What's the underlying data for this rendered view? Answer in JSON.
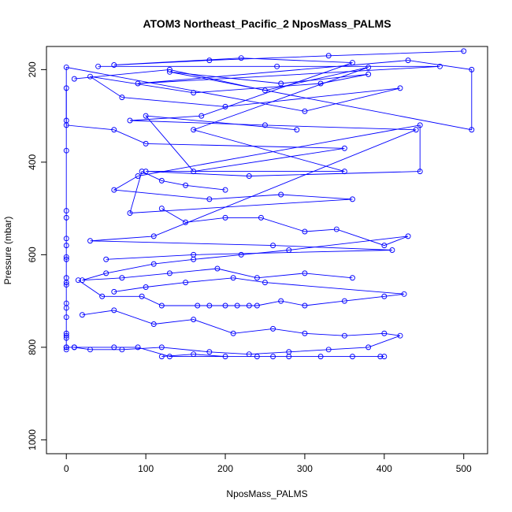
{
  "chart_data": {
    "type": "line",
    "title": "ATOM3 Northeast_Pacific_2 NposMass_PALMS",
    "xlabel": "NposMass_PALMS",
    "ylabel": "Pressure (mbar)",
    "xlim": [
      -25,
      530
    ],
    "ylim": [
      1030,
      150
    ],
    "y_reversed": true,
    "x_ticks": [
      0,
      100,
      200,
      300,
      400,
      500
    ],
    "y_ticks": [
      200,
      400,
      600,
      800,
      1000
    ],
    "line_color": "#0000ff",
    "marker": "open-circle",
    "grid": false,
    "series": [
      {
        "x": [
          40,
          265,
          470,
          90,
          430,
          510,
          510,
          130,
          270,
          380,
          320,
          160,
          30,
          70,
          200,
          420,
          300,
          0,
          0,
          60,
          100,
          350,
          160,
          100,
          290
        ],
        "y": [
          193,
          193,
          193,
          230,
          180,
          200,
          330,
          205,
          230,
          210,
          230,
          250,
          215,
          260,
          280,
          240,
          290,
          195,
          320,
          330,
          360,
          370,
          420,
          300,
          330
        ]
      },
      {
        "x": [
          0,
          0,
          0,
          0,
          0,
          0,
          0,
          0,
          0,
          0,
          0,
          0,
          0,
          0,
          0,
          0,
          0,
          0,
          0,
          0
        ],
        "y": [
          240,
          310,
          375,
          505,
          520,
          565,
          580,
          605,
          610,
          650,
          660,
          665,
          705,
          715,
          735,
          770,
          775,
          780,
          800,
          805
        ]
      },
      {
        "x": [
          10,
          130,
          250,
          380,
          160,
          350,
          100,
          230,
          445,
          445,
          90,
          60,
          180,
          270,
          360,
          80,
          95,
          120,
          150,
          200
        ],
        "y": [
          220,
          200,
          245,
          195,
          330,
          420,
          420,
          430,
          420,
          320,
          430,
          460,
          480,
          470,
          480,
          510,
          420,
          440,
          450,
          460
        ]
      },
      {
        "x": [
          120,
          150,
          200,
          245,
          300,
          340,
          400,
          430,
          280,
          220,
          160,
          110,
          50,
          20,
          70,
          130,
          190,
          240,
          300,
          360
        ],
        "y": [
          500,
          530,
          520,
          520,
          550,
          545,
          580,
          560,
          590,
          600,
          610,
          620,
          640,
          655,
          650,
          640,
          630,
          650,
          640,
          650
        ]
      },
      {
        "x": [
          15,
          45,
          95,
          120,
          165,
          180,
          200,
          215,
          230,
          240,
          270,
          300,
          350,
          400,
          425,
          250,
          210,
          150,
          100,
          60
        ],
        "y": [
          655,
          690,
          690,
          710,
          710,
          710,
          710,
          710,
          710,
          710,
          700,
          710,
          700,
          690,
          685,
          660,
          650,
          660,
          670,
          680
        ]
      },
      {
        "x": [
          20,
          60,
          110,
          160,
          210,
          260,
          300,
          350,
          400,
          420,
          380,
          330,
          280,
          230,
          180,
          120,
          70,
          30,
          10,
          0
        ],
        "y": [
          730,
          720,
          750,
          740,
          770,
          760,
          770,
          775,
          770,
          775,
          800,
          805,
          810,
          815,
          810,
          800,
          805,
          805,
          800,
          800
        ]
      },
      {
        "x": [
          120,
          160,
          200,
          240,
          280,
          320,
          360,
          395,
          400,
          260,
          130,
          90,
          60,
          10
        ],
        "y": [
          820,
          815,
          820,
          820,
          820,
          820,
          820,
          820,
          820,
          820,
          820,
          800,
          800,
          800
        ]
      },
      {
        "x": [
          500,
          330,
          180,
          60,
          220,
          360,
          170,
          80,
          250,
          440,
          110,
          30,
          260,
          410,
          160,
          50
        ],
        "y": [
          160,
          170,
          180,
          190,
          175,
          185,
          300,
          310,
          320,
          330,
          560,
          570,
          580,
          590,
          600,
          610
        ]
      }
    ]
  }
}
